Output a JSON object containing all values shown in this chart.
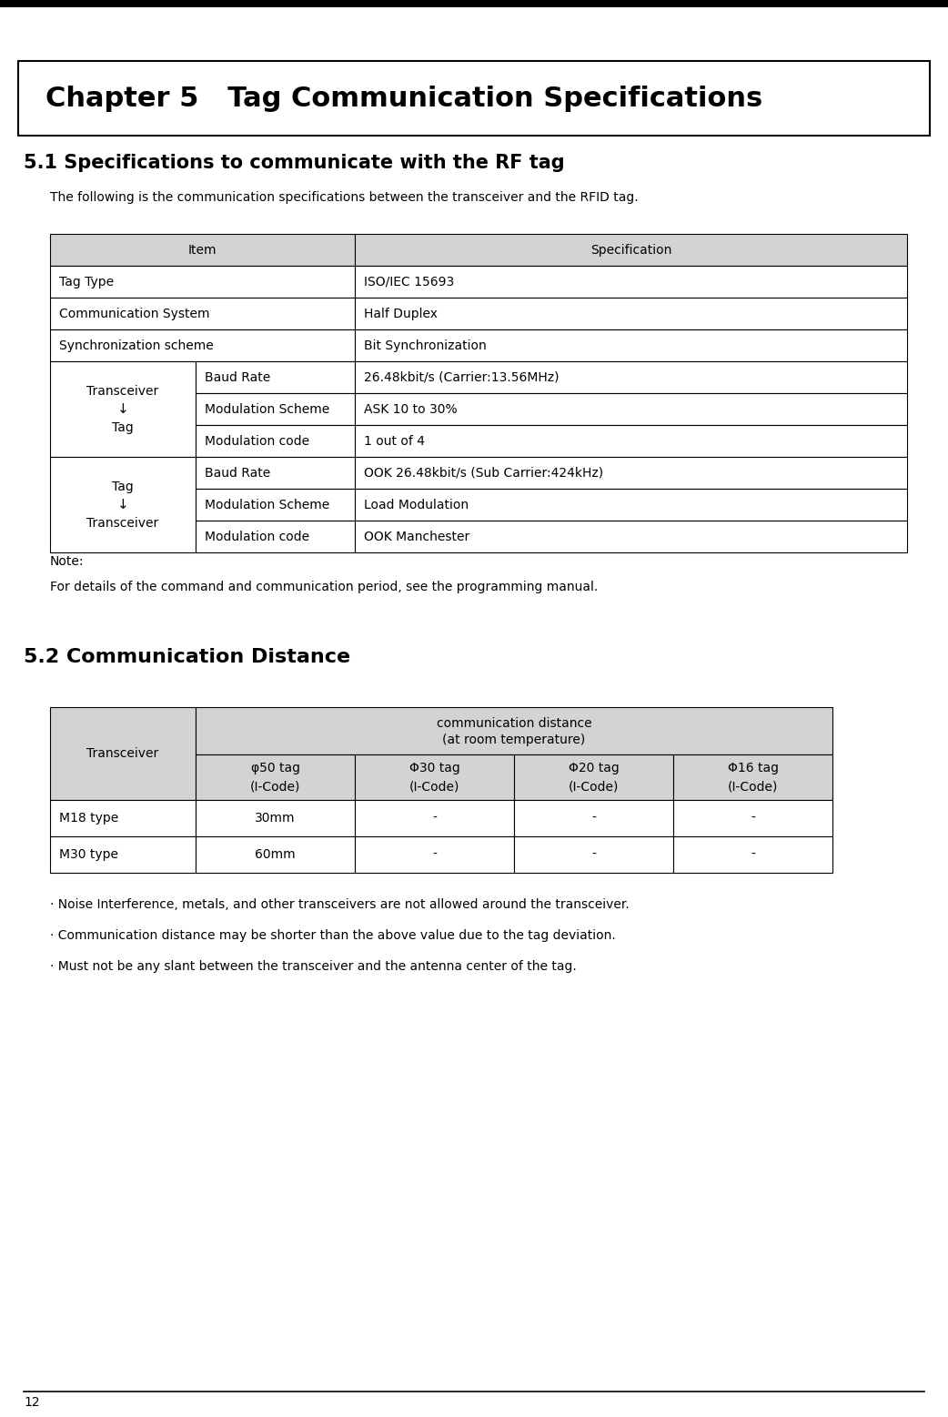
{
  "page_bg": "#ffffff",
  "chapter_title": "Chapter 5   Tag Communication Specifications",
  "section1_title": "5.1 Specifications to communicate with the RF tag",
  "section1_intro": "The following is the communication specifications between the transceiver and the RFID tag.",
  "table1_header": [
    "Item",
    "Specification"
  ],
  "table1_rows": [
    [
      "Tag Type",
      "",
      "ISO/IEC 15693"
    ],
    [
      "Communication System",
      "",
      "Half Duplex"
    ],
    [
      "Synchronization scheme",
      "",
      "Bit Synchronization"
    ],
    [
      "Transceiver",
      "Baud Rate",
      "26.48kbit/s (Carrier:13.56MHz)"
    ],
    [
      "↓",
      "Modulation Scheme",
      "ASK 10 to 30%"
    ],
    [
      "Tag",
      "Modulation code",
      "1 out of 4"
    ],
    [
      "Tag",
      "Baud Rate",
      "OOK 26.48kbit/s (Sub Carrier:424kHz)"
    ],
    [
      "↓",
      "Modulation Scheme",
      "Load Modulation"
    ],
    [
      "Transceiver",
      "Modulation code",
      "OOK Manchester"
    ]
  ],
  "note_title": "Note:",
  "note_text": "For details of the command and communication period, see the programming manual.",
  "section2_title": "5.2 Communication Distance",
  "table2_col_headers": [
    "φ50 tag\n(I-Code)",
    "Φ30 tag\n(I-Code)",
    "Φ20 tag\n(I-Code)",
    "Φ16 tag\n(I-Code)"
  ],
  "table2_row_label": "Transceiver",
  "table2_rows": [
    [
      "M18 type",
      "30mm",
      "-",
      "-",
      "-"
    ],
    [
      "M30 type",
      "60mm",
      "-",
      "-",
      "-"
    ]
  ],
  "bullets": [
    "· Noise Interference, metals, and other transceivers are not allowed around the transceiver.",
    "· Communication distance may be shorter than the above value due to the tag deviation.",
    "· Must not be any slant between the transceiver and the antenna center of the tag."
  ],
  "page_number": "12",
  "header_bg": "#d3d3d3",
  "cell_bg": "#ffffff",
  "border_color": "#000000"
}
